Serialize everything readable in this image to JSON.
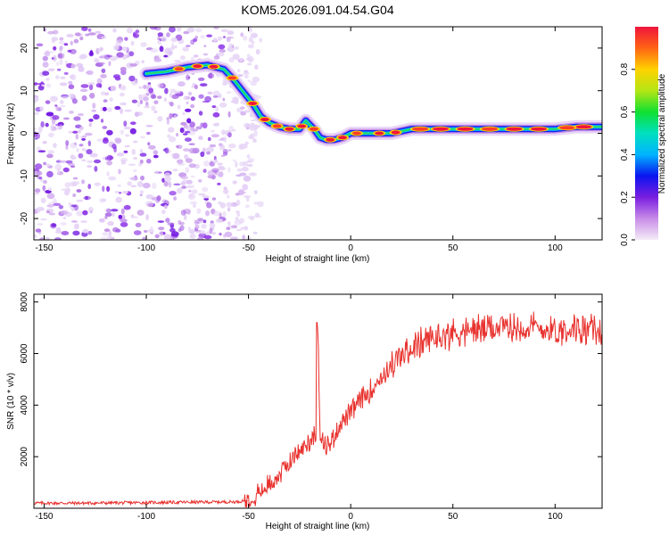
{
  "title": "KOM5.2026.091.04.54.G04",
  "chart_data": [
    {
      "type": "heatmap",
      "name": "spectrogram",
      "xlabel": "Height of straight line (km)",
      "ylabel": "Frequency (Hz)",
      "xlim": [
        -155,
        123
      ],
      "ylim": [
        -25,
        25
      ],
      "xticks": [
        -150,
        -100,
        -50,
        0,
        50,
        100
      ],
      "yticks": [
        -20,
        -10,
        0,
        10,
        20
      ],
      "ridge_x": [
        -100,
        -90,
        -80,
        -70,
        -62,
        -58,
        -53,
        -48,
        -44,
        -40,
        -35,
        -30,
        -25,
        -22,
        -18,
        -15,
        -12,
        -8,
        -4,
        0,
        10,
        20,
        30,
        50,
        70,
        90,
        100,
        110,
        123
      ],
      "ridge_freq": [
        14,
        14.5,
        15.5,
        16,
        15,
        13,
        10,
        7,
        4,
        2.5,
        1.5,
        1,
        1,
        3,
        1,
        -1,
        -1.5,
        -1.5,
        -1,
        0,
        0,
        0,
        1,
        1,
        1,
        1,
        1,
        1.5,
        1.5
      ],
      "noise_region_x": [
        -155,
        -52
      ],
      "colorbar": {
        "label": "Normalized spectral amplitude",
        "ticks": [
          0.0,
          0.2,
          0.4,
          0.6,
          0.8
        ],
        "range": [
          0,
          1
        ]
      }
    },
    {
      "type": "line",
      "name": "snr",
      "xlabel": "Height of straight line (km)",
      "ylabel": "SNR (10 * v/v)",
      "xlim": [
        -155,
        123
      ],
      "ylim": [
        0,
        8300
      ],
      "xticks": [
        -150,
        -100,
        -50,
        0,
        50,
        100
      ],
      "yticks": [
        2000,
        4000,
        6000,
        8000
      ],
      "color": "#e8322e",
      "series": [
        {
          "name": "SNR",
          "x": [
            -155,
            -130,
            -100,
            -70,
            -55,
            -50,
            -45,
            -40,
            -35,
            -30,
            -25,
            -20,
            -17,
            -16,
            -15,
            -10,
            -5,
            0,
            5,
            10,
            15,
            20,
            25,
            30,
            40,
            50,
            60,
            70,
            80,
            90,
            100,
            110,
            120,
            123
          ],
          "values": [
            200,
            200,
            220,
            240,
            250,
            350,
            600,
            900,
            1300,
            1800,
            2200,
            2600,
            3000,
            7200,
            2500,
            2500,
            3300,
            3700,
            4200,
            4600,
            5100,
            5500,
            5900,
            6200,
            6600,
            6800,
            6900,
            7000,
            7000,
            7000,
            6900,
            7000,
            6900,
            6800
          ]
        }
      ]
    }
  ]
}
